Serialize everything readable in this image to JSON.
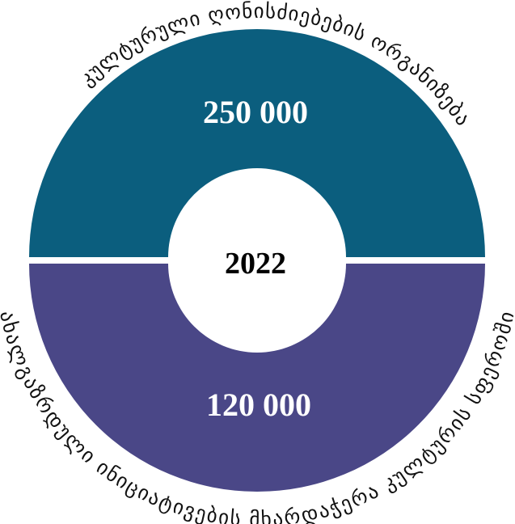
{
  "center_label": "2022",
  "segments": [
    {
      "label": "კულტურული ღონისძიებების ორგანიზება",
      "value": "250 000",
      "color": "#0b5e7e"
    },
    {
      "label": "ახალგაზრდული ინიციატივების მხარდაჭერა კულტურის სფეროში",
      "value": "120 000",
      "color": "#4a4787"
    }
  ]
}
